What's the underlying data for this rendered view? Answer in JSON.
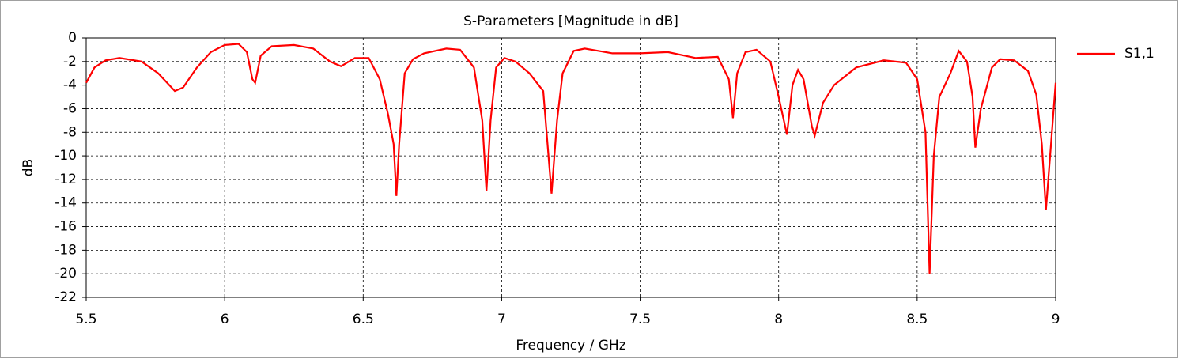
{
  "chart_data": {
    "type": "line",
    "title": "S-Parameters [Magnitude in dB]",
    "xlabel": "Frequency / GHz",
    "ylabel": "dB",
    "x": [
      5.5,
      5.53,
      5.57,
      5.62,
      5.7,
      5.76,
      5.82,
      5.85,
      5.9,
      5.95,
      6.0,
      6.05,
      6.08,
      6.1,
      6.11,
      6.13,
      6.17,
      6.25,
      6.32,
      6.38,
      6.42,
      6.47,
      6.52,
      6.56,
      6.59,
      6.61,
      6.62,
      6.63,
      6.65,
      6.68,
      6.72,
      6.8,
      6.85,
      6.9,
      6.93,
      6.945,
      6.96,
      6.98,
      7.01,
      7.05,
      7.1,
      7.15,
      7.18,
      7.2,
      7.22,
      7.26,
      7.3,
      7.4,
      7.5,
      7.6,
      7.7,
      7.78,
      7.82,
      7.835,
      7.85,
      7.88,
      7.92,
      7.97,
      8.0,
      8.03,
      8.05,
      8.07,
      8.09,
      8.12,
      8.13,
      8.16,
      8.2,
      8.28,
      8.38,
      8.46,
      8.5,
      8.53,
      8.545,
      8.56,
      8.58,
      8.62,
      8.65,
      8.68,
      8.7,
      8.71,
      8.73,
      8.77,
      8.8,
      8.85,
      8.9,
      8.93,
      8.95,
      8.965,
      8.98,
      9.0
    ],
    "series": [
      {
        "name": "S1,1",
        "color": "#ff0000",
        "values": [
          -3.8,
          -2.5,
          -1.9,
          -1.7,
          -2.0,
          -3.0,
          -4.5,
          -4.2,
          -2.5,
          -1.2,
          -0.6,
          -0.5,
          -1.2,
          -3.5,
          -3.8,
          -1.5,
          -0.7,
          -0.6,
          -0.9,
          -2.0,
          -2.4,
          -1.7,
          -1.7,
          -3.5,
          -6.5,
          -9,
          -13.4,
          -9,
          -3,
          -1.8,
          -1.3,
          -0.9,
          -1.0,
          -2.5,
          -7,
          -13,
          -7,
          -2.5,
          -1.7,
          -2.0,
          -3.0,
          -4.5,
          -13.2,
          -7,
          -3,
          -1.1,
          -0.9,
          -1.3,
          -1.3,
          -1.2,
          -1.7,
          -1.6,
          -3.5,
          -6.8,
          -3,
          -1.2,
          -1.0,
          -2.0,
          -5,
          -8.2,
          -4,
          -2.7,
          -3.5,
          -7.5,
          -8.3,
          -5.5,
          -4.0,
          -2.5,
          -1.9,
          -2.1,
          -3.5,
          -8,
          -20,
          -10,
          -5,
          -3,
          -1.1,
          -2.0,
          -5,
          -9.3,
          -6,
          -2.5,
          -1.8,
          -1.9,
          -2.8,
          -4.8,
          -9,
          -14.6,
          -10,
          -3.8
        ]
      }
    ],
    "xlim": [
      5.5,
      9
    ],
    "xticks": [
      5.5,
      6,
      6.5,
      7,
      7.5,
      8,
      8.5,
      9
    ],
    "ylim": [
      -22,
      0
    ],
    "yticks": [
      0,
      -2,
      -4,
      -6,
      -8,
      -10,
      -12,
      -14,
      -16,
      -18,
      -20,
      -22
    ],
    "grid": true,
    "legend": "right"
  }
}
